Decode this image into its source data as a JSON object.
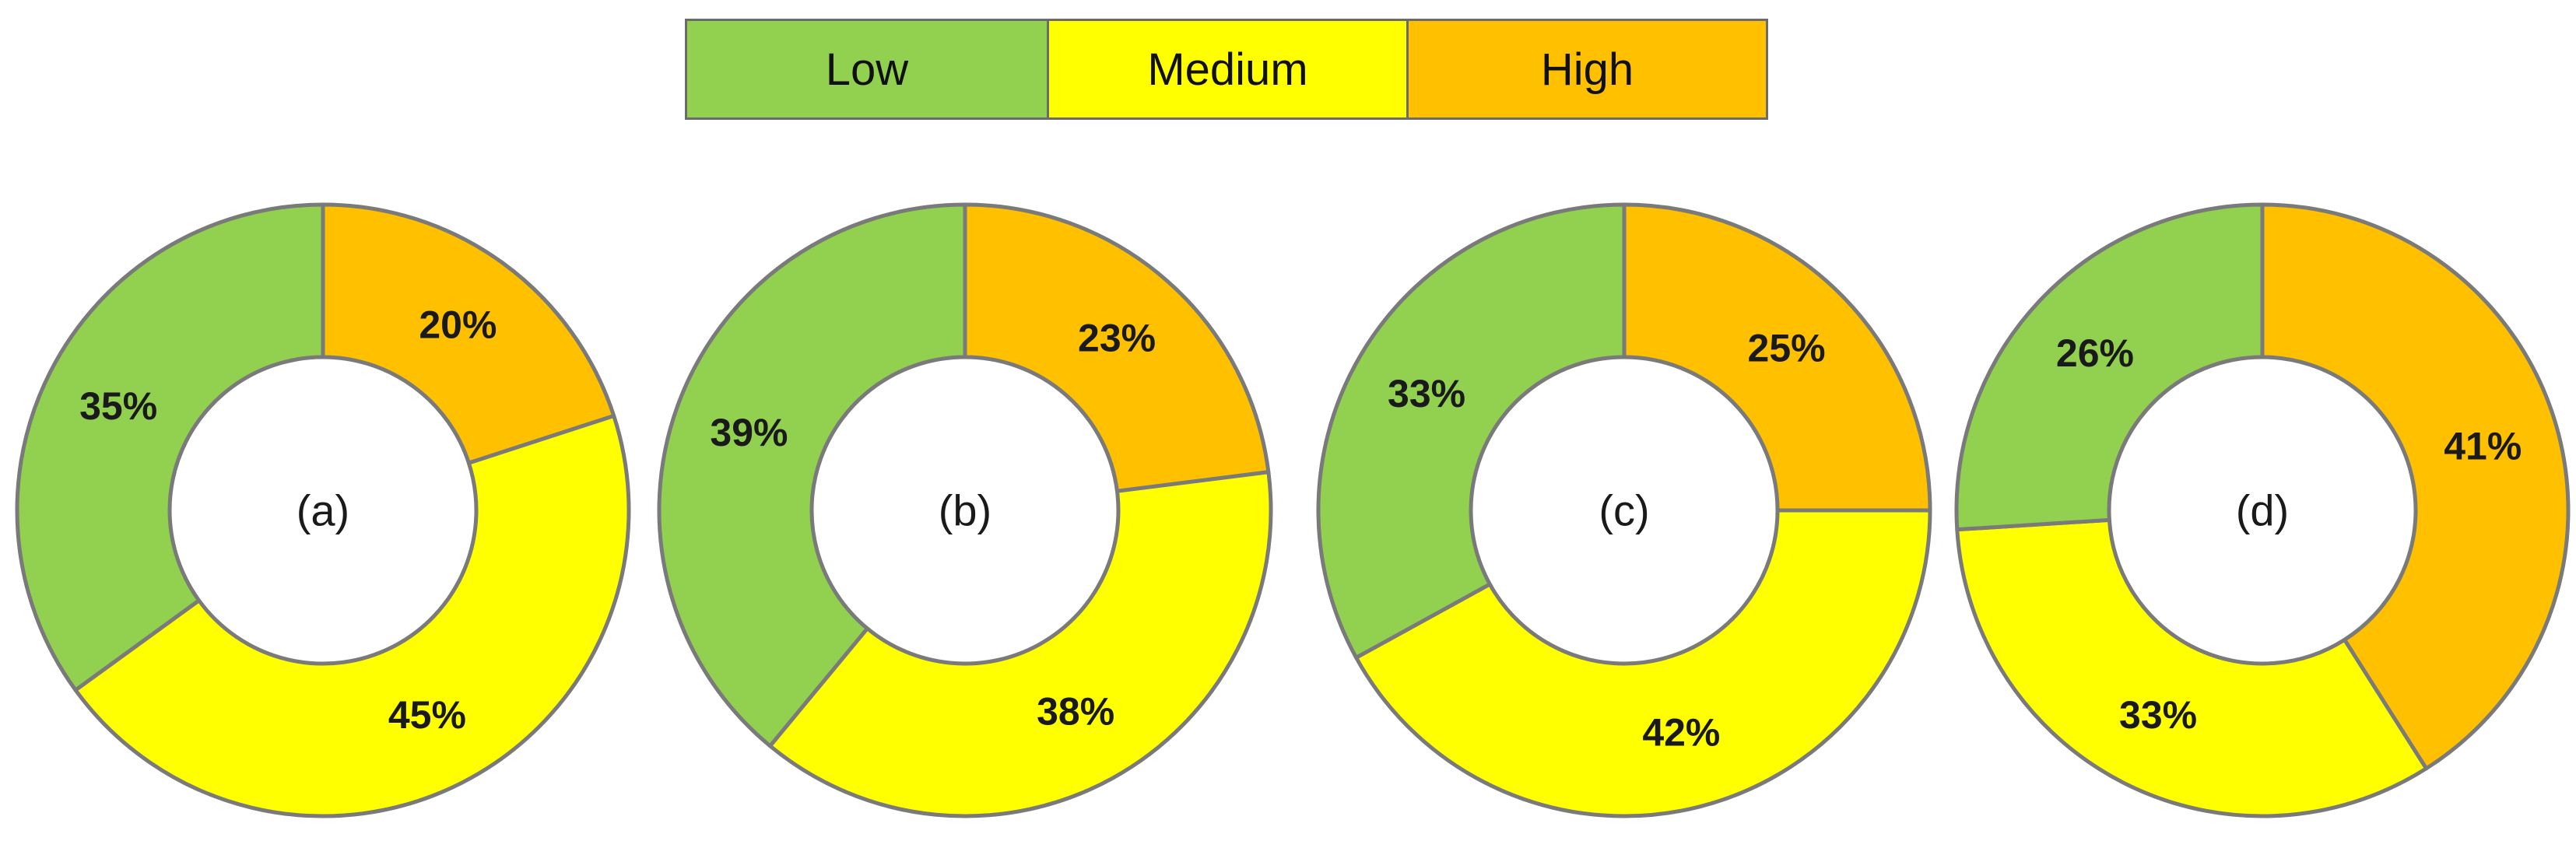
{
  "legend": [
    {
      "label": "Low",
      "color": "#92d050"
    },
    {
      "label": "Medium",
      "color": "#ffff00"
    },
    {
      "label": "High",
      "color": "#ffc000"
    }
  ],
  "chart_data": [
    {
      "type": "pie",
      "center_label": "(a)",
      "slices": [
        {
          "category": "High",
          "value": 20,
          "label": "20%"
        },
        {
          "category": "Medium",
          "value": 45,
          "label": "45%"
        },
        {
          "category": "Low",
          "value": 35,
          "label": "35%"
        }
      ]
    },
    {
      "type": "pie",
      "center_label": "(b)",
      "slices": [
        {
          "category": "High",
          "value": 23,
          "label": "23%"
        },
        {
          "category": "Medium",
          "value": 38,
          "label": "38%"
        },
        {
          "category": "Low",
          "value": 39,
          "label": "39%"
        }
      ]
    },
    {
      "type": "pie",
      "center_label": "(c)",
      "slices": [
        {
          "category": "High",
          "value": 25,
          "label": "25%"
        },
        {
          "category": "Medium",
          "value": 42,
          "label": "42%"
        },
        {
          "category": "Low",
          "value": 33,
          "label": "33%"
        }
      ]
    },
    {
      "type": "pie",
      "center_label": "(d)",
      "slices": [
        {
          "category": "High",
          "value": 41,
          "label": "41%"
        },
        {
          "category": "Medium",
          "value": 33,
          "label": "33%"
        },
        {
          "category": "Low",
          "value": 26,
          "label": "26%"
        }
      ]
    }
  ]
}
